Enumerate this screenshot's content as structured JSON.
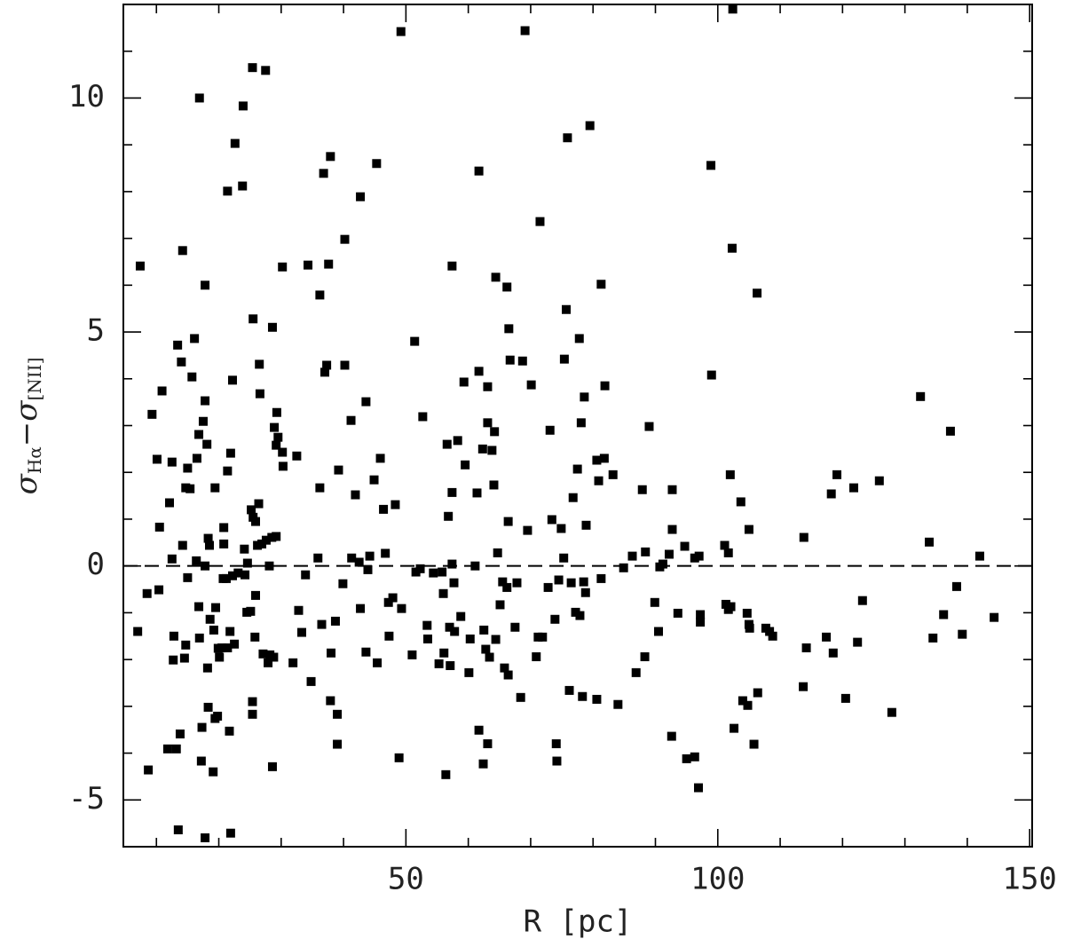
{
  "chart_data": {
    "type": "scatter",
    "xlabel": "R [pc]",
    "ylabel": [
      "σ",
      "Hα",
      "−σ",
      "[NII]"
    ],
    "xlim": [
      4.7,
      150.4
    ],
    "ylim": [
      -6,
      12
    ],
    "xticks": [
      50,
      100,
      150
    ],
    "yticks": [
      -5,
      0,
      5,
      10
    ],
    "xminorticks": [
      10,
      20,
      30,
      40,
      60,
      70,
      80,
      90,
      110,
      120,
      130,
      140
    ],
    "yminorticks": [
      -6,
      -4,
      -3,
      -2,
      -1,
      1,
      2,
      3,
      4,
      6,
      7,
      8,
      9,
      11,
      12
    ],
    "reference_line": 0,
    "color": "#000000",
    "x": [
      7.4,
      7.0,
      8.7,
      8.5,
      9.3,
      10.1,
      10.4,
      10.5,
      10.9,
      11.8,
      12.1,
      12.5,
      12.5,
      12.8,
      12.7,
      13.2,
      13.4,
      13.5,
      13.8,
      14.0,
      14.2,
      14.2,
      14.5,
      14.7,
      14.7,
      15.0,
      15.0,
      15.4,
      15.7,
      16.1,
      16.4,
      16.5,
      16.8,
      16.9,
      16.8,
      16.9,
      17.2,
      17.3,
      17.5,
      17.8,
      17.8,
      17.8,
      17.8,
      18.1,
      18.3,
      18.2,
      18.3,
      18.5,
      18.6,
      19.1,
      19.2,
      19.4,
      19.4,
      19.5,
      19.8,
      19.9,
      20.1,
      20.5,
      20.7,
      20.8,
      20.8,
      21.2,
      21.4,
      21.4,
      21.4,
      21.7,
      21.8,
      21.9,
      21.9,
      22.2,
      22.2,
      22.5,
      22.6,
      23.1,
      23.8,
      23.9,
      24.1,
      24.2,
      24.5,
      24.6,
      25.1,
      25.2,
      25.4,
      25.5,
      25.4,
      25.4,
      25.5,
      25.8,
      25.9,
      25.9,
      26.2,
      26.4,
      26.5,
      26.6,
      26.9,
      27.1,
      27.5,
      27.6,
      27.9,
      28.1,
      28.2,
      28.5,
      28.6,
      28.6,
      28.8,
      28.9,
      29.2,
      29.3,
      29.2,
      29.5,
      30.2,
      30.3,
      30.2,
      31.9,
      32.5,
      32.8,
      33.3,
      33.9,
      34.3,
      34.8,
      35.9,
      36.2,
      36.2,
      36.5,
      36.8,
      37.0,
      37.3,
      37.6,
      37.9,
      37.9,
      38.0,
      38.7,
      39.0,
      39.0,
      39.2,
      39.9,
      40.2,
      40.2,
      41.2,
      41.3,
      41.9,
      42.5,
      42.7,
      42.7,
      43.6,
      43.6,
      43.9,
      44.2,
      44.9,
      45.3,
      45.4,
      45.9,
      46.4,
      46.7,
      47.2,
      47.3,
      47.9,
      48.3,
      48.9,
      49.2,
      49.3,
      51.0,
      51.4,
      51.6,
      52.3,
      52.7,
      53.4,
      53.5,
      54.4,
      55.3,
      55.8,
      56.0,
      56.1,
      56.4,
      56.6,
      56.8,
      57.0,
      57.1,
      57.4,
      57.4,
      57.4,
      57.7,
      57.8,
      58.3,
      58.8,
      59.3,
      59.5,
      60.1,
      60.3,
      61.1,
      61.4,
      61.7,
      61.7,
      61.7,
      62.3,
      62.4,
      62.5,
      62.8,
      63.1,
      63.1,
      63.1,
      63.4,
      63.8,
      64.1,
      64.2,
      64.4,
      64.4,
      64.7,
      65.1,
      65.5,
      65.8,
      66.2,
      66.2,
      66.4,
      66.4,
      66.5,
      66.7,
      67.5,
      67.8,
      68.4,
      68.7,
      69.1,
      69.5,
      70.1,
      70.9,
      71.2,
      71.5,
      71.9,
      72.8,
      73.1,
      73.4,
      73.9,
      74.1,
      74.2,
      74.5,
      74.9,
      75.3,
      75.4,
      75.7,
      75.9,
      76.2,
      76.5,
      76.8,
      77.2,
      77.5,
      77.8,
      77.9,
      78.1,
      78.3,
      78.5,
      78.6,
      78.8,
      78.9,
      79.5,
      80.6,
      80.6,
      80.9,
      81.3,
      81.3,
      81.8,
      81.9,
      83.2,
      84.0,
      84.9,
      86.3,
      86.9,
      87.9,
      88.3,
      88.4,
      89.0,
      89.9,
      90.5,
      90.7,
      91.2,
      92.2,
      92.6,
      92.7,
      92.7,
      93.6,
      94.7,
      95.0,
      96.3,
      96.3,
      96.9,
      97.2,
      97.2,
      97.0,
      98.9,
      99.0,
      101.1,
      101.3,
      101.7,
      101.7,
      102.0,
      102.1,
      102.3,
      102.4,
      102.6,
      103.7,
      104.0,
      104.7,
      104.8,
      105.0,
      105.0,
      105.1,
      105.8,
      106.3,
      106.4,
      107.7,
      108.3,
      108.8,
      113.7,
      113.8,
      114.2,
      117.4,
      118.2,
      118.5,
      119.1,
      120.5,
      121.8,
      122.4,
      123.2,
      125.9,
      127.9,
      132.5,
      133.9,
      134.5,
      136.2,
      137.3,
      138.3,
      139.2,
      142.0,
      144.3
    ],
    "y": [
      6.41,
      -1.4,
      -4.36,
      -0.59,
      3.24,
      2.28,
      -0.51,
      0.83,
      3.74,
      -3.91,
      1.35,
      0.15,
      2.22,
      -1.5,
      -2.01,
      -3.91,
      4.72,
      -5.64,
      -3.59,
      4.36,
      6.74,
      0.44,
      -1.97,
      -1.69,
      1.67,
      2.09,
      -0.25,
      1.65,
      4.04,
      4.86,
      0.11,
      2.3,
      -0.87,
      10.0,
      2.81,
      -1.54,
      -4.17,
      -3.45,
      3.09,
      6.0,
      3.53,
      0.0,
      -5.81,
      2.6,
      0.59,
      -2.18,
      -3.02,
      0.44,
      -1.14,
      -4.4,
      -1.37,
      -3.26,
      1.67,
      -0.89,
      -3.21,
      -1.76,
      -1.95,
      -1.75,
      -0.27,
      0.82,
      0.47,
      -0.27,
      8.01,
      2.03,
      -1.75,
      -3.53,
      -1.4,
      -5.71,
      2.41,
      -0.21,
      3.97,
      -1.67,
      9.03,
      -0.15,
      8.12,
      9.83,
      0.36,
      -0.19,
      -0.99,
      0.06,
      -0.97,
      1.2,
      10.65,
      5.28,
      -2.9,
      -3.17,
      1.04,
      -1.52,
      -0.63,
      0.95,
      0.44,
      1.33,
      4.31,
      3.68,
      0.47,
      -1.88,
      10.59,
      0.55,
      -2.07,
      0.0,
      -1.9,
      0.61,
      5.1,
      -4.29,
      -1.95,
      2.96,
      0.63,
      3.28,
      2.58,
      2.75,
      6.39,
      2.13,
      2.43,
      -2.07,
      2.35,
      -0.95,
      -1.42,
      -0.19,
      6.43,
      -2.47,
      0.17,
      1.67,
      5.79,
      -1.25,
      8.39,
      4.14,
      4.29,
      6.45,
      8.75,
      -2.88,
      -1.86,
      -1.18,
      -3.81,
      -3.17,
      2.05,
      -0.38,
      6.98,
      4.29,
      3.11,
      0.17,
      1.52,
      0.08,
      -0.91,
      7.89,
      3.51,
      -1.84,
      -0.08,
      0.21,
      1.84,
      8.6,
      -2.07,
      2.3,
      1.21,
      0.27,
      -0.78,
      -1.5,
      -0.68,
      1.31,
      -4.1,
      11.42,
      -0.91,
      -1.9,
      4.8,
      -0.13,
      -0.06,
      3.19,
      -1.27,
      -1.56,
      -0.15,
      -2.09,
      -0.13,
      -0.59,
      -1.86,
      -4.46,
      2.6,
      1.06,
      -1.31,
      -2.13,
      6.41,
      1.57,
      0.04,
      -0.36,
      -1.4,
      2.68,
      -1.08,
      3.93,
      2.16,
      -2.28,
      -1.56,
      0.0,
      1.56,
      8.44,
      -3.51,
      4.16,
      2.5,
      -4.23,
      -1.37,
      -1.78,
      -3.8,
      3.83,
      3.06,
      -1.95,
      2.47,
      1.73,
      2.87,
      6.17,
      -1.57,
      0.28,
      -0.83,
      -0.34,
      -2.18,
      -0.46,
      5.96,
      0.95,
      -2.33,
      5.07,
      4.4,
      -1.31,
      -0.36,
      -2.81,
      4.38,
      11.44,
      0.76,
      3.87,
      -1.94,
      -1.52,
      7.36,
      -1.52,
      -0.46,
      2.9,
      0.99,
      -1.14,
      -3.8,
      -4.17,
      -0.3,
      0.8,
      0.17,
      4.42,
      5.48,
      9.15,
      -2.66,
      -0.36,
      1.46,
      -0.99,
      2.07,
      4.86,
      -1.06,
      3.06,
      -2.79,
      -0.34,
      3.61,
      -0.57,
      0.87,
      9.41,
      2.26,
      -2.85,
      1.82,
      6.02,
      -0.27,
      2.3,
      3.85,
      1.95,
      -2.96,
      -0.04,
      0.21,
      -2.28,
      1.63,
      -1.94,
      0.3,
      2.98,
      -0.78,
      -1.4,
      -0.02,
      0.04,
      0.25,
      -3.64,
      1.63,
      0.78,
      -1.01,
      0.42,
      -4.12,
      -4.08,
      0.17,
      -4.74,
      -1.04,
      -1.2,
      0.21,
      8.56,
      4.08,
      0.44,
      -0.82,
      0.28,
      -0.93,
      1.95,
      -0.87,
      6.79,
      11.9,
      -3.47,
      1.37,
      -2.88,
      -1.01,
      -2.98,
      0.78,
      -1.25,
      -1.33,
      -3.81,
      5.83,
      -2.71,
      -1.33,
      -1.4,
      -1.5,
      -2.58,
      0.61,
      -1.75,
      -1.52,
      1.54,
      -1.86,
      1.95,
      -2.83,
      1.67,
      -1.63,
      -0.74,
      1.82,
      -3.13,
      3.62,
      0.51,
      -1.54,
      -1.04,
      2.88,
      -0.44,
      -1.46,
      0.21,
      -1.1
    ]
  }
}
